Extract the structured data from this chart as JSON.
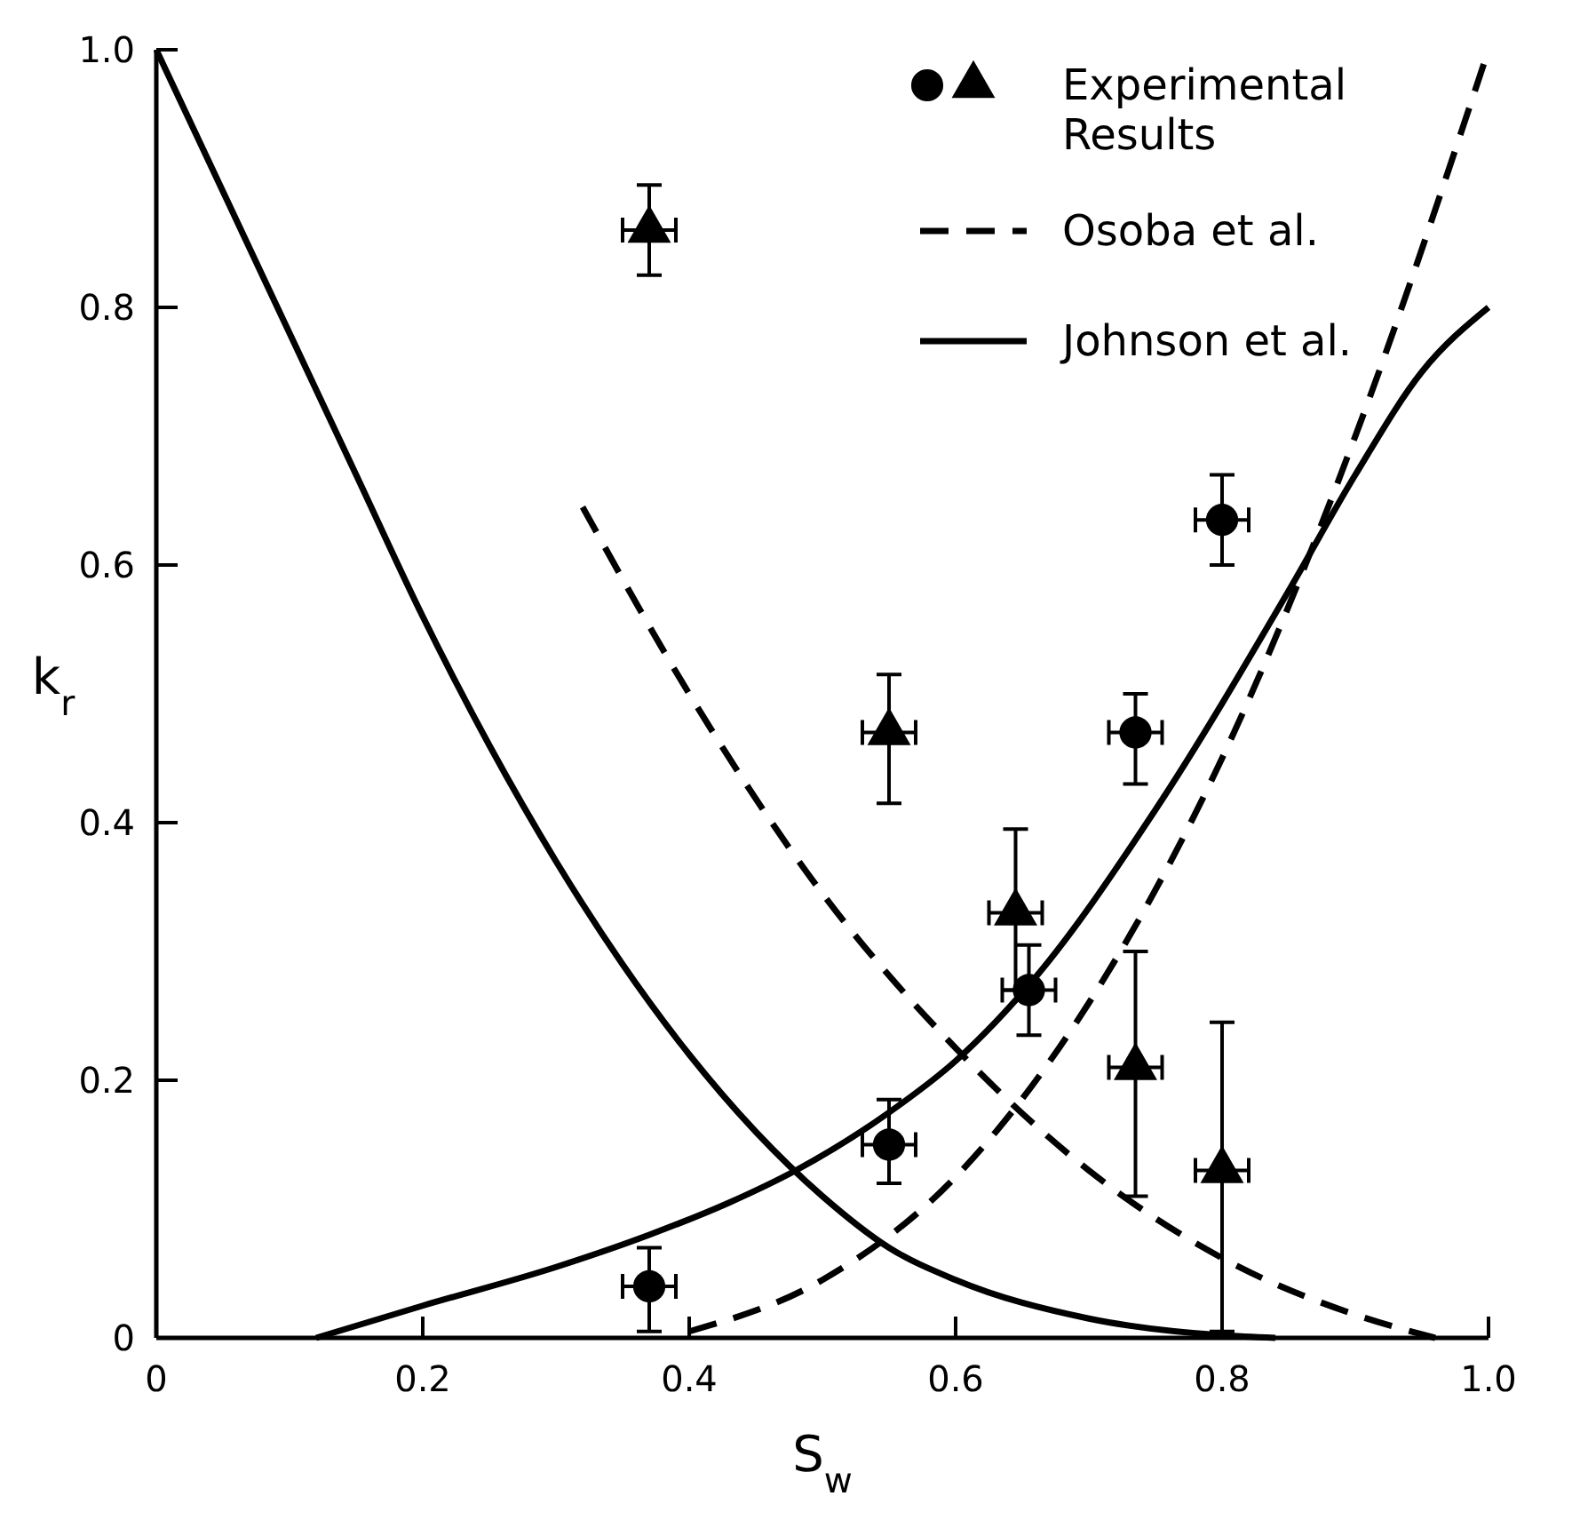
{
  "chart_data": {
    "type": "line",
    "xlabel": "S$_{w}$",
    "ylabel": "k$_{r}$",
    "xlim": [
      0,
      1
    ],
    "ylim": [
      0,
      1
    ],
    "xticks": [
      0,
      0.2,
      0.4,
      0.6,
      0.8,
      {
        "value": 1,
        "label": "1.0"
      }
    ],
    "yticks": [
      0,
      0.2,
      0.4,
      0.6,
      0.8,
      {
        "value": 1,
        "label": "1.0"
      }
    ],
    "grid": false,
    "legend": "top right",
    "series": [
      {
        "type": "scatter",
        "marker": "circle",
        "color": "#000000",
        "x": [
          0.37,
          0.55,
          0.655,
          0.735,
          0.8
        ],
        "values": [
          0.04,
          0.15,
          0.27,
          0.47,
          0.635
        ],
        "errors": [
          [
            0.005,
            0.07
          ],
          [
            0.12,
            0.185
          ],
          [
            0.235,
            0.305
          ],
          [
            0.43,
            0.5
          ],
          [
            0.6,
            0.67
          ]
        ],
        "xerrors": [
          0.02,
          0.02,
          0.02,
          0.02,
          0.02
        ]
      },
      {
        "name": "Experimental Results",
        "type": "scatter",
        "marker": "triangle",
        "color": "#000000",
        "x": [
          0.37,
          0.55,
          0.645,
          0.735,
          0.8
        ],
        "values": [
          0.86,
          0.47,
          0.33,
          0.21,
          0.13
        ],
        "errors": [
          [
            0.825,
            0.895
          ],
          [
            0.415,
            0.515
          ],
          [
            0.27,
            0.395
          ],
          [
            0.11,
            0.3
          ],
          [
            0.005,
            0.245
          ]
        ],
        "xerrors": [
          0.02,
          0.02,
          0.02,
          0.02,
          0.02
        ]
      },
      {
        "name": "Osoba et al.",
        "line_style": "dashed",
        "color": "#000000",
        "x": [
          0.32,
          0.4,
          0.5,
          0.6,
          0.7,
          0.8,
          0.9,
          0.96
        ],
        "values": [
          0.645,
          0.5,
          0.345,
          0.225,
          0.13,
          0.062,
          0.018,
          0
        ]
      },
      {
        "line_style": "dashed",
        "color": "#000000",
        "x": [
          0.4,
          0.5,
          0.6,
          0.7,
          0.8,
          0.9,
          1.0
        ],
        "values": [
          0.005,
          0.045,
          0.125,
          0.26,
          0.45,
          0.7,
          1.0
        ]
      },
      {
        "name": "Johnson et al.",
        "line_style": "solid",
        "color": "#000000",
        "x": [
          0,
          0.05,
          0.1,
          0.15,
          0.2,
          0.25,
          0.3,
          0.35,
          0.4,
          0.45,
          0.5,
          0.55,
          0.6,
          0.7,
          0.8,
          0.84
        ],
        "values": [
          1,
          0.89,
          0.78,
          0.67,
          0.56,
          0.46,
          0.37,
          0.29,
          0.22,
          0.16,
          0.11,
          0.07,
          0.045,
          0.015,
          0.002,
          0
        ]
      },
      {
        "line_style": "solid",
        "color": "#000000",
        "x": [
          0.12,
          0.2,
          0.3,
          0.37,
          0.43,
          0.48,
          0.55,
          0.6,
          0.66,
          0.75,
          0.85,
          0.9,
          0.95,
          1.0
        ],
        "values": [
          0,
          0.025,
          0.055,
          0.08,
          0.105,
          0.13,
          0.175,
          0.215,
          0.28,
          0.41,
          0.58,
          0.67,
          0.75,
          0.8
        ]
      }
    ]
  }
}
